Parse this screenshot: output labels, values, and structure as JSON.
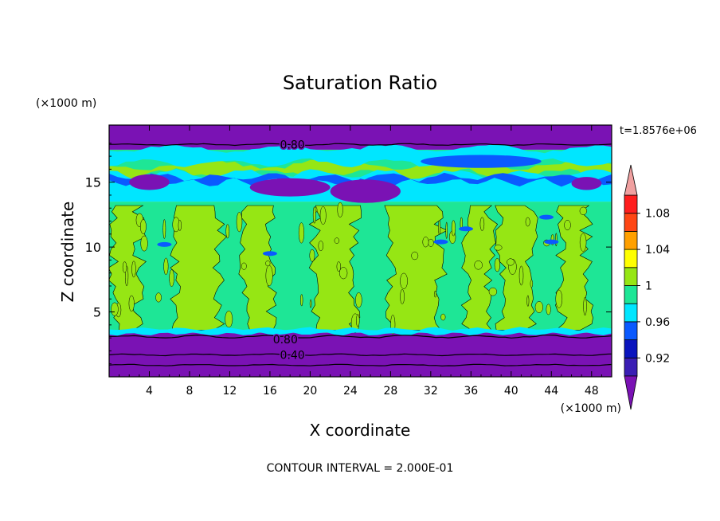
{
  "chart_data": {
    "type": "heatmap",
    "title": "Saturation Ratio",
    "xlabel": "X coordinate",
    "ylabel": "Z coordinate",
    "x_units": "(×1000 m)",
    "y_units": "(×1000 m)",
    "time_label": "t=1.8576e+06",
    "footer": "CONTOUR INTERVAL = 2.000E-01",
    "xlim": [
      0,
      50
    ],
    "ylim": [
      0,
      19.4
    ],
    "x_ticks": [
      4,
      8,
      12,
      16,
      20,
      24,
      28,
      32,
      36,
      40,
      44,
      48
    ],
    "y_ticks": [
      5,
      10,
      15
    ],
    "contour_labels": [
      {
        "text": "0.80",
        "x": 17,
        "y": 17.9
      },
      {
        "text": "0.80",
        "x": 16.3,
        "y": 2.9
      },
      {
        "text": "0.40",
        "x": 17,
        "y": 1.7
      }
    ],
    "colorbar": {
      "levels": [
        0.92,
        0.94,
        0.96,
        0.98,
        1,
        1.02,
        1.04,
        1.06,
        1.08,
        1.1
      ],
      "labels": [
        "0.92",
        "0.96",
        "1",
        "1.04",
        "1.08"
      ],
      "label_values": [
        0.92,
        0.96,
        1.0,
        1.04,
        1.08
      ],
      "colors": [
        "#7a12b4",
        "#3a1eb4",
        "#0a14be",
        "#0a5aff",
        "#00e6ff",
        "#1ee696",
        "#96e614",
        "#ffff00",
        "#ffa000",
        "#ff4614",
        "#ff1e1e",
        "#f0a0a0"
      ]
    },
    "layers": [
      {
        "name": "upper_dry",
        "z": [
          17.5,
          19.4
        ],
        "color": "#7a12b4"
      },
      {
        "name": "upper_ice",
        "z": [
          15.0,
          17.5
        ],
        "color": "#1ee696"
      },
      {
        "name": "mid_cloud",
        "z": [
          13.5,
          15.0
        ],
        "color": "#00e6ff"
      },
      {
        "name": "lower_mix",
        "z": [
          3.4,
          13.5
        ],
        "color": "#1ee696"
      },
      {
        "name": "boundary_dry",
        "z": [
          0,
          3.4
        ],
        "color": "#7a12b4"
      }
    ]
  }
}
